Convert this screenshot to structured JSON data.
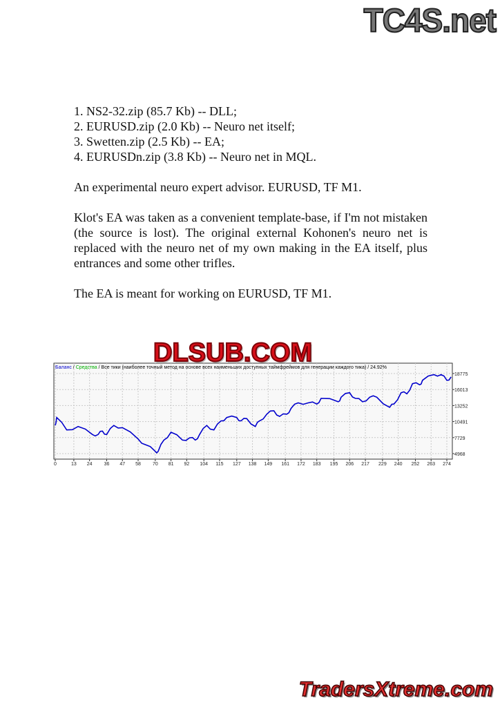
{
  "watermarks": {
    "top": "TC4S.net",
    "middle": "DLSUB.COM",
    "bottom": "TradersXtreme.com"
  },
  "document": {
    "list": [
      "1. NS2-32.zip (85.7 Kb) -- DLL;",
      "2. EURUSD.zip (2.0 Kb) -- Neuro net itself;",
      "3. Swetten.zip (2.5 Kb) -- EA;",
      "4. EURUSDn.zip (3.8 Kb) -- Neuro net in MQL."
    ],
    "paragraphs": [
      "An experimental neuro expert advisor. EURUSD, TF M1.",
      "Klot's EA was taken as a convenient template-base, if I'm not mistaken (the source is lost). The original external Kohonen's neuro net is replaced with the neuro net of my own making in the EA itself, plus entrances and some other trifles.",
      "The EA is meant for working on EURUSD, TF M1."
    ]
  },
  "chart_data": {
    "type": "line",
    "legend": {
      "balance": "Баланс",
      "equity": "Средства",
      "sep": " / ",
      "rest": "Все тики (наиболее точный метод на основе всех наименьших доступных таймфреймов для генерации каждого тика) / 24.92%",
      "placement": "top-left"
    },
    "colors": {
      "balance": "#0000cc",
      "equity": "#00b000",
      "background": "#f8f8f8",
      "grid": "#c8c8c8"
    },
    "grid": true,
    "yticks": [
      18775,
      16013,
      13252,
      10491,
      7729,
      4968
    ],
    "xticks": [
      0,
      13,
      24,
      36,
      47,
      58,
      70,
      81,
      92,
      104,
      115,
      127,
      138,
      149,
      161,
      172,
      183,
      195,
      206,
      217,
      229,
      240,
      252,
      263,
      274
    ],
    "xlim": [
      0,
      278
    ],
    "ylim": [
      4968,
      18775
    ],
    "series": [
      {
        "name": "Баланс",
        "x": [
          0,
          1,
          8,
          16,
          26,
          30,
          33,
          36,
          41,
          47,
          58,
          63,
          70,
          72,
          76,
          81,
          89,
          94,
          98,
          101,
          106,
          111,
          116,
          120,
          127,
          130,
          134,
          140,
          143,
          148,
          153,
          157,
          162,
          165,
          170,
          177,
          183,
          186,
          198,
          200,
          206,
          210,
          215,
          220,
          225,
          234,
          237,
          242,
          246,
          250,
          255,
          257,
          265,
          270,
          274,
          277
        ],
        "y": [
          9828,
          11190,
          9050,
          9640,
          8270,
          8270,
          8850,
          8270,
          9830,
          9440,
          7490,
          6520,
          5350,
          5350,
          7300,
          8660,
          7300,
          7690,
          7300,
          8270,
          9830,
          9050,
          10610,
          11190,
          11190,
          10610,
          11000,
          9640,
          10610,
          11770,
          12360,
          11380,
          11770,
          12750,
          13720,
          13720,
          13520,
          14490,
          13910,
          14690,
          15470,
          14490,
          13910,
          14690,
          14690,
          12940,
          13520,
          15470,
          15280,
          17020,
          16830,
          17610,
          18580,
          18580,
          17610,
          18190
        ]
      }
    ]
  }
}
